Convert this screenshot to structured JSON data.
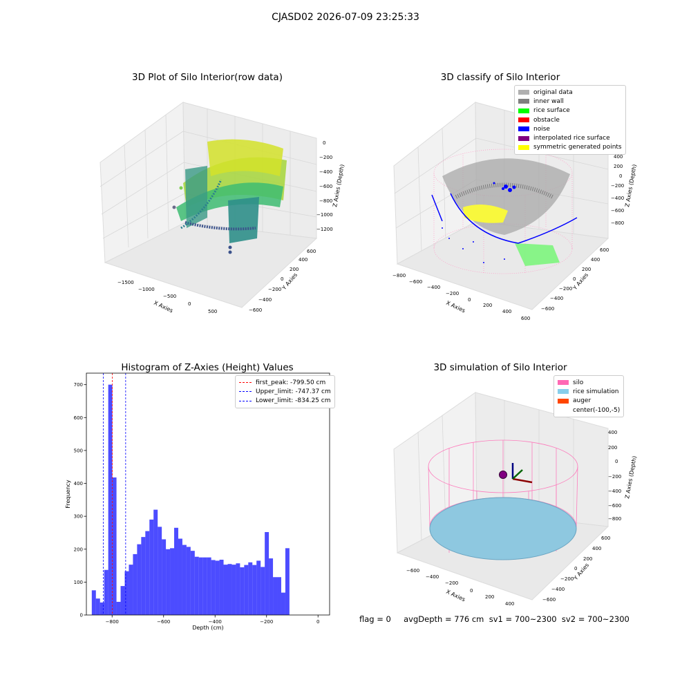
{
  "figure": {
    "suptitle": "CJASD02 2026-07-09 23:25:33",
    "status_text": "flag = 0     avgDepth = 776 cm  sv1 = 700~2300  sv2 = 700~2300"
  },
  "panels": {
    "raw": {
      "title": "3D Plot of Silo Interior(row data)",
      "xlabel": "X Axies",
      "ylabel": "Y Axies",
      "zlabel": "Z Axies (Depth)",
      "xticks": [
        "−1500",
        "−1000",
        "−500",
        "0",
        "500"
      ],
      "yticks": [
        "600",
        "400",
        "200",
        "0",
        "−200",
        "−400",
        "−600"
      ],
      "zticks": [
        "0",
        "−200",
        "−400",
        "−600",
        "−800",
        "−1000",
        "−1200"
      ]
    },
    "classify": {
      "title": "3D classify of Silo Interior",
      "xlabel": "X Axies",
      "ylabel": "Y Axies",
      "zlabel": "Z Axies (Depth)",
      "xticks": [
        "−800",
        "−600",
        "−400",
        "−200",
        "0",
        "200",
        "400",
        "600"
      ],
      "yticks": [
        "600",
        "400",
        "200",
        "0",
        "−200",
        "−400",
        "−600"
      ],
      "zticks": [
        "400",
        "200",
        "0",
        "−200",
        "−400",
        "−600",
        "−800"
      ],
      "legend": [
        {
          "label": "original data",
          "color": "#b0b0b0"
        },
        {
          "label": "inner wall",
          "color": "#808080"
        },
        {
          "label": "rice surface",
          "color": "#00ff00"
        },
        {
          "label": "obstacle",
          "color": "#ff0000"
        },
        {
          "label": "noise",
          "color": "#0000ff"
        },
        {
          "label": "interpolated rice surface",
          "color": "#800080"
        },
        {
          "label": "symmetric generated points",
          "color": "#ffff00"
        }
      ]
    },
    "simulation": {
      "title": "3D simulation of Silo Interior",
      "xlabel": "X Axies",
      "ylabel": "Y Axies",
      "zlabel": "Z Axies (Depth)",
      "xticks": [
        "−600",
        "−400",
        "−200",
        "0",
        "200",
        "400"
      ],
      "yticks": [
        "600",
        "400",
        "200",
        "0",
        "−200",
        "−400",
        "−600"
      ],
      "zticks": [
        "400",
        "200",
        "0",
        "−200",
        "−400",
        "−600",
        "−800"
      ],
      "legend": [
        {
          "label": "silo",
          "color": "#ff69b4"
        },
        {
          "label": "rice simulation",
          "color": "#87ceeb"
        },
        {
          "label": "auger",
          "color": "#ff4500"
        },
        {
          "label": "center(-100,-5)",
          "color": "transparent"
        }
      ]
    }
  },
  "chart_data": {
    "type": "bar",
    "title": "Histogram of Z-Axies (Height) Values",
    "xlabel": "Depth (cm)",
    "ylabel": "Frequency",
    "xlim": [
      -900,
      45
    ],
    "ylim": [
      0,
      735
    ],
    "bin_start": -879,
    "bin_width": 16,
    "values": [
      75,
      50,
      38,
      137,
      700,
      418,
      40,
      88,
      133,
      153,
      185,
      215,
      237,
      255,
      290,
      320,
      268,
      230,
      200,
      203,
      265,
      232,
      213,
      207,
      195,
      177,
      175,
      175,
      175,
      167,
      165,
      168,
      153,
      155,
      153,
      157,
      145,
      152,
      160,
      152,
      165,
      146,
      252,
      172,
      115,
      115,
      68,
      203
    ],
    "xticks": [
      -800,
      -600,
      -400,
      -200,
      0
    ],
    "xtick_labels": [
      "−800",
      "−600",
      "−400",
      "−200",
      "0"
    ],
    "yticks": [
      0,
      100,
      200,
      300,
      400,
      500,
      600,
      700
    ],
    "bar_color": "#0000ff",
    "vlines": [
      {
        "x": -799.5,
        "color": "#ff0000",
        "label": "first_peak: -799.50 cm"
      },
      {
        "x": -747.37,
        "color": "#0000ff",
        "label": "Upper_limit: -747.37 cm"
      },
      {
        "x": -834.25,
        "color": "#0000ff",
        "label": "Lower_limit: -834.25 cm"
      }
    ],
    "legend_position": "upper right"
  }
}
